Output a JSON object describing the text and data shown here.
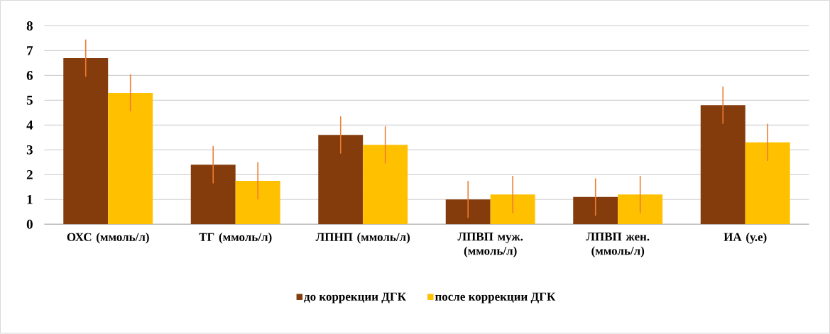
{
  "chart_data": {
    "type": "bar",
    "categories": [
      "ОХС (ммоль/л)",
      "ТГ (ммоль/л)",
      "ЛПНП (ммоль/л)",
      "ЛПВП муж. (ммоль/л)",
      "ЛПВП жен. (ммоль/л)",
      "ИА (у.е)"
    ],
    "series": [
      {
        "name": "до коррекции ДГК",
        "color": "#843c0c",
        "values": [
          6.7,
          2.4,
          3.6,
          1.0,
          1.1,
          4.8
        ],
        "errors": [
          0.75,
          0.75,
          0.75,
          0.75,
          0.75,
          0.75
        ]
      },
      {
        "name": "после коррекции ДГК",
        "color": "#ffc000",
        "values": [
          5.3,
          1.75,
          3.2,
          1.2,
          1.2,
          3.3
        ],
        "errors": [
          0.75,
          0.75,
          0.75,
          0.75,
          0.75,
          0.75
        ]
      }
    ],
    "ylim": [
      0,
      8
    ],
    "yticks": [
      0,
      1,
      2,
      3,
      4,
      5,
      6,
      7,
      8
    ],
    "grid": "y",
    "legend": "bottom"
  }
}
